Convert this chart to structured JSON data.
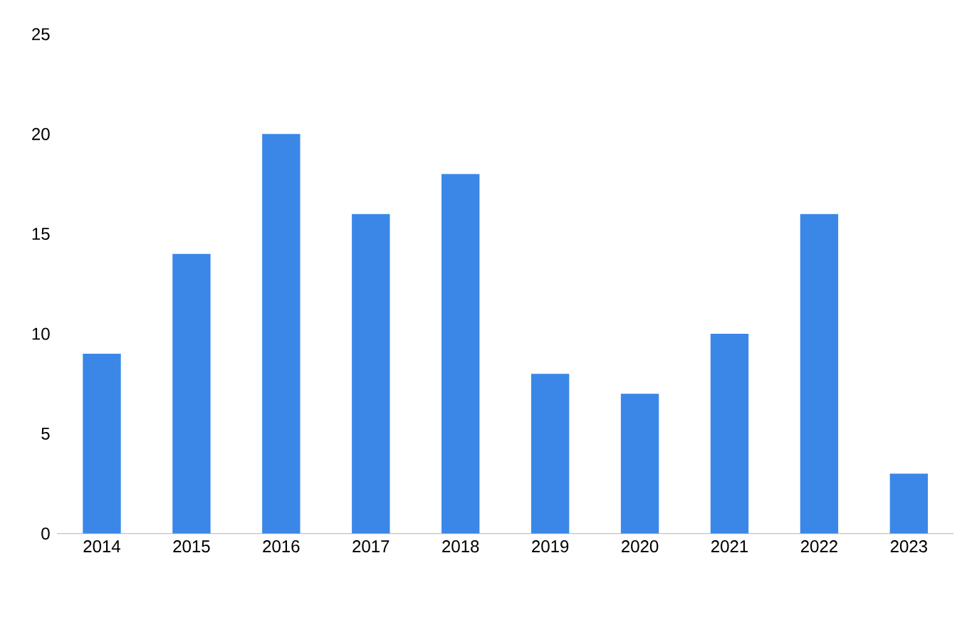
{
  "chart_data": {
    "type": "bar",
    "categories": [
      "2014",
      "2015",
      "2016",
      "2017",
      "2018",
      "2019",
      "2020",
      "2021",
      "2022",
      "2023"
    ],
    "values": [
      9,
      14,
      20,
      16,
      18,
      8,
      7,
      10,
      16,
      3
    ],
    "color": "#3a87e8",
    "ylim": [
      0,
      25
    ],
    "yticks": [
      0,
      5,
      10,
      15,
      20,
      25
    ]
  }
}
